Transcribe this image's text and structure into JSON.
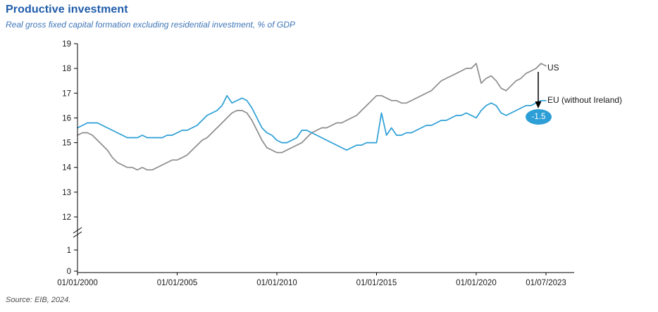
{
  "header": {
    "title": "Productive investment",
    "subtitle": "Real gross fixed capital formation excluding residential investment, % of GDP"
  },
  "footer": {
    "source": "Source: EIB, 2024."
  },
  "colors": {
    "title_blue": "#1f5ca9",
    "subtitle_blue": "#3f76b8",
    "us_line": "#8c8c8c",
    "eu_line": "#2d9fd6",
    "badge_fill": "#2d9fd6",
    "axis": "#000000"
  },
  "annotations": {
    "us_label": "US",
    "eu_label": "EU (without Ireland)",
    "gap_badge": "-1.5"
  },
  "chart_data": {
    "type": "line",
    "title": "Productive investment",
    "subtitle": "Real gross fixed capital formation excluding residential investment, % of GDP",
    "xlabel": "",
    "ylabel": "% of GDP",
    "x_range": [
      2000,
      2023.5
    ],
    "x_start": 2000,
    "x_step": 0.25,
    "x_tick_values": [
      2000,
      2005,
      2010,
      2015,
      2020,
      2023.5
    ],
    "x_tick_labels": [
      "01/01/2000",
      "01/01/2005",
      "01/01/2010",
      "01/01/2015",
      "01/01/2020",
      "01/07/2023"
    ],
    "y_ticks": [
      0,
      1,
      12,
      13,
      14,
      15,
      16,
      17,
      18,
      19
    ],
    "axis_break": {
      "between": [
        1,
        12
      ]
    },
    "grid": false,
    "legend_position": "inline-right",
    "series": [
      {
        "id": "us",
        "name": "US",
        "color": "#8c8c8c",
        "values": [
          15.3,
          15.4,
          15.4,
          15.3,
          15.1,
          14.9,
          14.7,
          14.4,
          14.2,
          14.1,
          14.0,
          14.0,
          13.9,
          14.0,
          13.9,
          13.9,
          14.0,
          14.1,
          14.2,
          14.3,
          14.3,
          14.4,
          14.5,
          14.7,
          14.9,
          15.1,
          15.2,
          15.4,
          15.6,
          15.8,
          16.0,
          16.2,
          16.3,
          16.3,
          16.2,
          15.9,
          15.5,
          15.1,
          14.8,
          14.7,
          14.6,
          14.6,
          14.7,
          14.8,
          14.9,
          15.0,
          15.2,
          15.4,
          15.5,
          15.6,
          15.6,
          15.7,
          15.8,
          15.8,
          15.9,
          16.0,
          16.1,
          16.3,
          16.5,
          16.7,
          16.9,
          16.9,
          16.8,
          16.7,
          16.7,
          16.6,
          16.6,
          16.7,
          16.8,
          16.9,
          17.0,
          17.1,
          17.3,
          17.5,
          17.6,
          17.7,
          17.8,
          17.9,
          18.0,
          18.0,
          18.2,
          17.4,
          17.6,
          17.7,
          17.5,
          17.2,
          17.1,
          17.3,
          17.5,
          17.6,
          17.8,
          17.9,
          18.0,
          18.2,
          18.1
        ]
      },
      {
        "id": "eu",
        "name": "EU (without Ireland)",
        "color": "#2d9fd6",
        "values": [
          15.6,
          15.7,
          15.8,
          15.8,
          15.8,
          15.7,
          15.6,
          15.5,
          15.4,
          15.3,
          15.2,
          15.2,
          15.2,
          15.3,
          15.2,
          15.2,
          15.2,
          15.2,
          15.3,
          15.3,
          15.4,
          15.5,
          15.5,
          15.6,
          15.7,
          15.9,
          16.1,
          16.2,
          16.3,
          16.5,
          16.9,
          16.6,
          16.7,
          16.8,
          16.7,
          16.4,
          16.0,
          15.6,
          15.4,
          15.3,
          15.1,
          15.0,
          15.0,
          15.1,
          15.2,
          15.5,
          15.5,
          15.4,
          15.3,
          15.2,
          15.1,
          15.0,
          14.9,
          14.8,
          14.7,
          14.8,
          14.9,
          14.9,
          15.0,
          15.0,
          15.0,
          16.2,
          15.3,
          15.6,
          15.3,
          15.3,
          15.4,
          15.4,
          15.5,
          15.6,
          15.7,
          15.7,
          15.8,
          15.9,
          15.9,
          16.0,
          16.1,
          16.1,
          16.2,
          16.1,
          16.0,
          16.3,
          16.5,
          16.6,
          16.5,
          16.2,
          16.1,
          16.2,
          16.3,
          16.4,
          16.5,
          16.5,
          16.6,
          16.7,
          16.7
        ]
      }
    ],
    "end_gap_value": -1.5
  }
}
